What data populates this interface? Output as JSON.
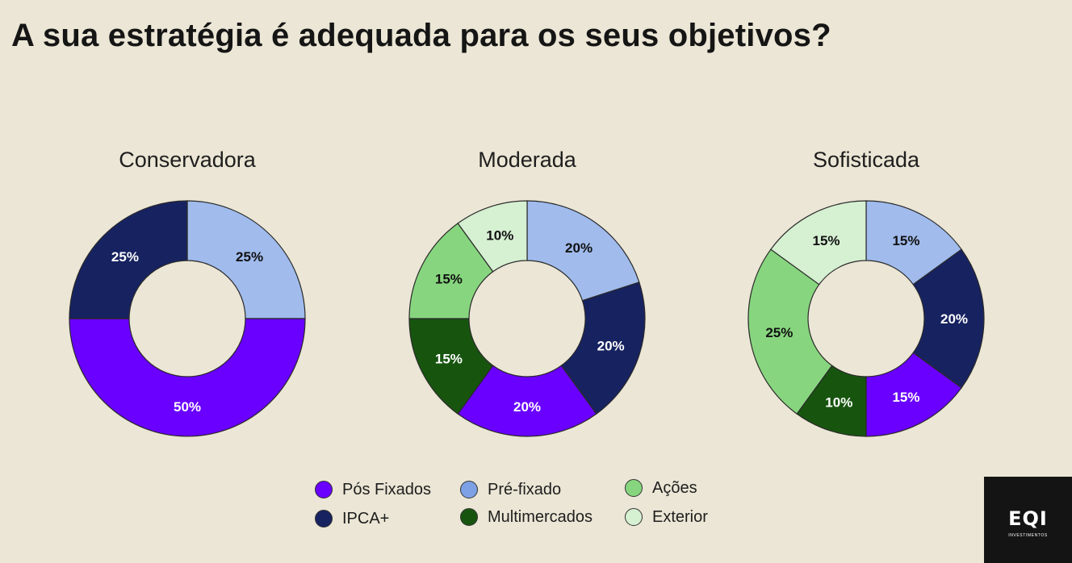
{
  "title": "A sua estratégia é adequada para os seus objetivos?",
  "colors": {
    "pos_fixados": "#6a00ff",
    "ipca": "#172260",
    "pre_fixado": "#a0bbec",
    "multimercados": "#17550f",
    "acoes": "#87d67f",
    "exterior": "#d6f0d2"
  },
  "legend": [
    {
      "label": "Pós Fixados",
      "key": "pos_fixados",
      "swatch": "#6a00ff"
    },
    {
      "label": "IPCA+",
      "key": "ipca",
      "swatch": "#172260"
    },
    {
      "label": "Pré-fixado",
      "key": "pre_fixado",
      "swatch": "#7ea1e6"
    },
    {
      "label": "Multimercados",
      "key": "multimercados",
      "swatch": "#17550f"
    },
    {
      "label": "Ações",
      "key": "acoes",
      "swatch": "#87d67f"
    },
    {
      "label": "Exterior",
      "key": "exterior",
      "swatch": "#d6f0d2"
    }
  ],
  "chart_data": [
    {
      "type": "pie",
      "title": "Conservadora",
      "slices": [
        {
          "key": "pre_fixado",
          "value": 25,
          "label": "25%"
        },
        {
          "key": "pos_fixados",
          "value": 50,
          "label": "50%"
        },
        {
          "key": "ipca",
          "value": 25,
          "label": "25%"
        }
      ]
    },
    {
      "type": "pie",
      "title": "Moderada",
      "slices": [
        {
          "key": "pre_fixado",
          "value": 20,
          "label": "20%"
        },
        {
          "key": "ipca",
          "value": 20,
          "label": "20%"
        },
        {
          "key": "pos_fixados",
          "value": 20,
          "label": "20%"
        },
        {
          "key": "multimercados",
          "value": 15,
          "label": "15%"
        },
        {
          "key": "acoes",
          "value": 15,
          "label": "15%"
        },
        {
          "key": "exterior",
          "value": 10,
          "label": "10%"
        }
      ]
    },
    {
      "type": "pie",
      "title": "Sofisticada",
      "slices": [
        {
          "key": "pre_fixado",
          "value": 15,
          "label": "15%"
        },
        {
          "key": "ipca",
          "value": 20,
          "label": "20%"
        },
        {
          "key": "pos_fixados",
          "value": 15,
          "label": "15%"
        },
        {
          "key": "multimercados",
          "value": 10,
          "label": "10%"
        },
        {
          "key": "acoes",
          "value": 25,
          "label": "25%"
        },
        {
          "key": "exterior",
          "value": 15,
          "label": "15%"
        }
      ]
    }
  ],
  "logo": {
    "mark": "EQI",
    "sub": "INVESTIMENTOS"
  }
}
